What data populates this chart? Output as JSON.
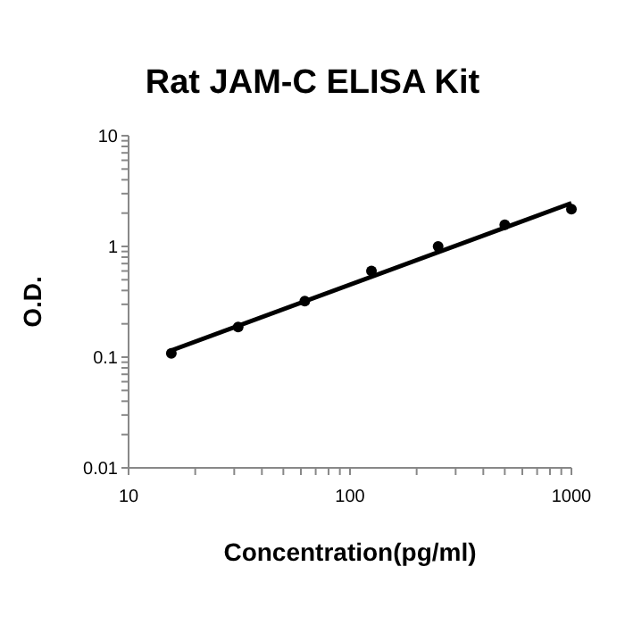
{
  "chart_data": {
    "type": "scatter",
    "title": "Rat JAM-C ELISA Kit",
    "xlabel": "Concentration(pg/ml)",
    "ylabel": "O.D.",
    "log": "xy",
    "grid": false,
    "legend": false,
    "xlim": [
      10,
      1000
    ],
    "ylim": [
      0.01,
      10
    ],
    "xticks": [
      10,
      {
        "value": 20,
        "label": null
      },
      {
        "value": 30,
        "label": null
      },
      {
        "value": 40,
        "label": null
      },
      {
        "value": 50,
        "label": null
      },
      {
        "value": 60,
        "label": null
      },
      {
        "value": 70,
        "label": null
      },
      {
        "value": 80,
        "label": null
      },
      {
        "value": 90,
        "label": null
      },
      100,
      {
        "value": 200,
        "label": null
      },
      {
        "value": 300,
        "label": null
      },
      {
        "value": 400,
        "label": null
      },
      {
        "value": 500,
        "label": null
      },
      {
        "value": 600,
        "label": null
      },
      {
        "value": 700,
        "label": null
      },
      {
        "value": 800,
        "label": null
      },
      {
        "value": 900,
        "label": null
      },
      1000
    ],
    "yticks": [
      0.01,
      {
        "value": 0.02,
        "label": null
      },
      {
        "value": 0.03,
        "label": null
      },
      {
        "value": 0.04,
        "label": null
      },
      {
        "value": 0.05,
        "label": null
      },
      {
        "value": 0.06,
        "label": null
      },
      {
        "value": 0.07,
        "label": null
      },
      {
        "value": 0.08,
        "label": null
      },
      {
        "value": 0.09,
        "label": null
      },
      0.1,
      {
        "value": 0.2,
        "label": null
      },
      {
        "value": 0.3,
        "label": null
      },
      {
        "value": 0.4,
        "label": null
      },
      {
        "value": 0.5,
        "label": null
      },
      {
        "value": 0.6,
        "label": null
      },
      {
        "value": 0.7,
        "label": null
      },
      {
        "value": 0.8,
        "label": null
      },
      {
        "value": 0.9,
        "label": null
      },
      1,
      {
        "value": 2,
        "label": null
      },
      {
        "value": 3,
        "label": null
      },
      {
        "value": 4,
        "label": null
      },
      {
        "value": 5,
        "label": null
      },
      {
        "value": 6,
        "label": null
      },
      {
        "value": 7,
        "label": null
      },
      {
        "value": 8,
        "label": null
      },
      {
        "value": 9,
        "label": null
      },
      10
    ],
    "series": [
      {
        "color": "#000000",
        "marker": "circle",
        "x": [
          15.6,
          31.25,
          62.5,
          125,
          250,
          500,
          1000
        ],
        "values": [
          0.108,
          0.187,
          0.32,
          0.6,
          1.0,
          1.57,
          2.17
        ]
      },
      {
        "type": "line",
        "color": "#000000",
        "marker": "none",
        "line_style": "solid",
        "x": [
          15.6,
          1000
        ],
        "values": [
          0.115,
          2.46
        ]
      }
    ]
  }
}
